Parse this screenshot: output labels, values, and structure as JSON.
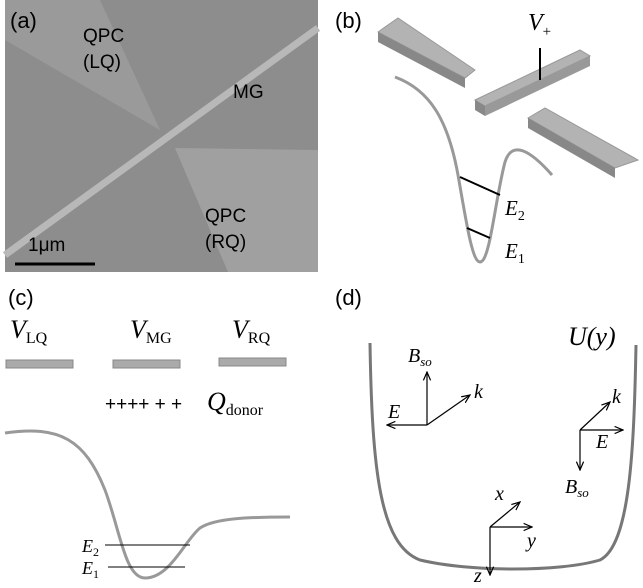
{
  "panel_a": {
    "label": "(a)",
    "gate_left": [
      "QPC",
      "(LQ)"
    ],
    "middle_gate": "MG",
    "gate_right": [
      "QPC",
      "(RQ)"
    ],
    "scale_bar": "1μm"
  },
  "panel_b": {
    "label": "(b)",
    "voltage": {
      "main": "V",
      "sub": "+"
    },
    "level_2": {
      "main": "E",
      "sub": "2"
    },
    "level_1": {
      "main": "E",
      "sub": "1"
    }
  },
  "panel_c": {
    "label": "(c)",
    "gates": [
      {
        "main": "V",
        "sub": "LQ"
      },
      {
        "main": "V",
        "sub": "MG"
      },
      {
        "main": "V",
        "sub": "RQ"
      }
    ],
    "charges": "++++ + +",
    "donor": {
      "main": "Q",
      "sub": "donor"
    },
    "level_2": {
      "main": "E",
      "sub": "2"
    },
    "level_1": {
      "main": "E",
      "sub": "1"
    }
  },
  "panel_d": {
    "label": "(d)",
    "potential": "U(y)",
    "left_triad": {
      "field": {
        "main": "B",
        "sub": "so"
      },
      "momentum": "k",
      "electric": "E"
    },
    "right_triad": {
      "field": {
        "main": "B",
        "sub": "so"
      },
      "momentum": "k",
      "electric": "E"
    },
    "axes": {
      "x": "x",
      "y": "y",
      "z": "z"
    }
  }
}
